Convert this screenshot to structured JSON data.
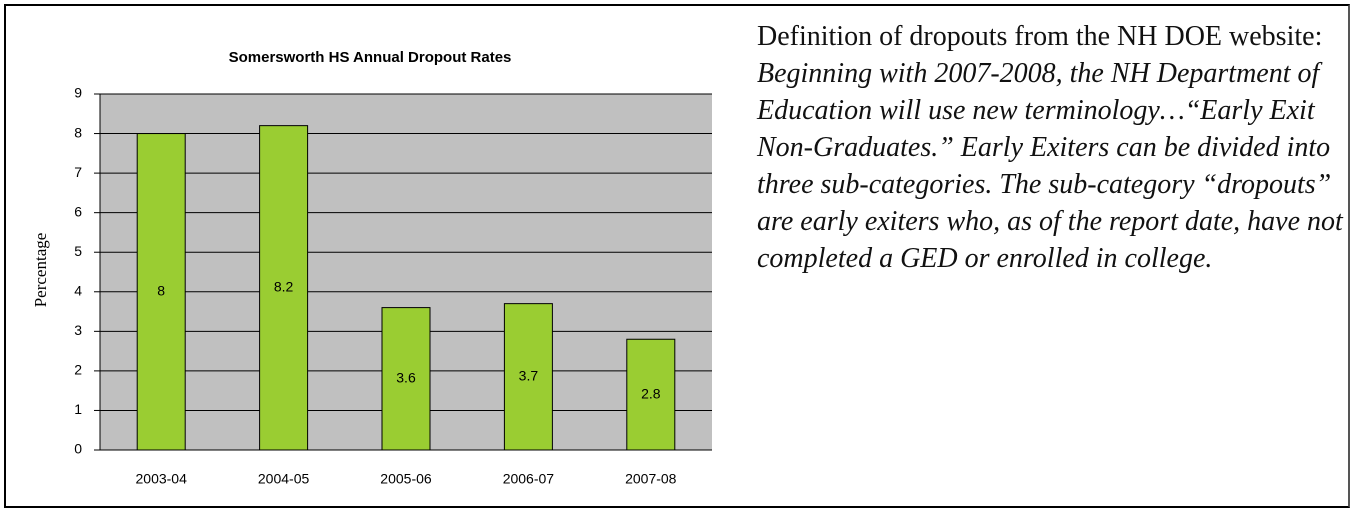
{
  "chart_data": {
    "type": "bar",
    "title": "Somersworth HS Annual Dropout Rates",
    "y_label": "Percentage",
    "categories": [
      "2003-04",
      "2004-05",
      "2005-06",
      "2006-07",
      "2007-08"
    ],
    "values": [
      8,
      8.2,
      3.6,
      3.7,
      2.8
    ],
    "color": "#9acd32",
    "ylim": [
      0,
      9
    ],
    "yticks": [
      0,
      1,
      2,
      3,
      4,
      5,
      6,
      7,
      8,
      9
    ],
    "grid": true
  },
  "text": {
    "intro": "Definition of dropouts from the NH DOE website: ",
    "quote": "Beginning with 2007-2008, the NH Department of Education will use new terminology…“Early Exit Non-Graduates.” Early Exiters can be divided into three sub-categories.  The sub-category “dropouts” are early exiters who, as of the report date, have not completed a GED or enrolled in college."
  }
}
